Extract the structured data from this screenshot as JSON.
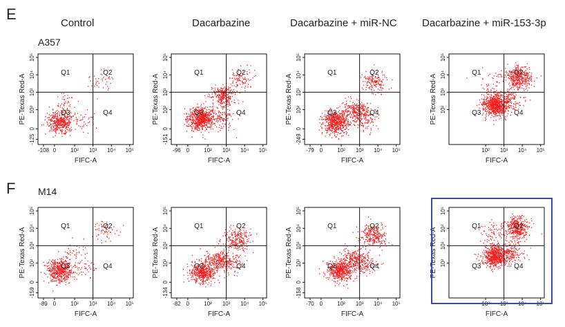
{
  "panel_e": {
    "letter": "E",
    "cell_line": "A357",
    "conditions": [
      "Control",
      "Dacarbazine",
      "Dacarbazine + miR-NC",
      "Dacarbazine + miR-153-3p"
    ]
  },
  "panel_f": {
    "letter": "F",
    "cell_line": "M14"
  },
  "colors": {
    "dots": "#ff1a1a",
    "highlight_box": "#3b46c2",
    "lines": "#111111"
  },
  "chart_data": [
    {
      "type": "scatter",
      "panel": "E",
      "condition": "Control",
      "xlabel": "FIFC-A",
      "ylabel": "PE-Texas Red-A",
      "x_ticks": [
        "-108",
        "0",
        "10²",
        "10³",
        "10⁴",
        "10⁵"
      ],
      "y_ticks": [
        "-125",
        "0",
        "10²",
        "10³",
        "10⁴",
        "10⁵"
      ],
      "quadrants": [
        "Q1",
        "Q2",
        "Q3",
        "Q4"
      ],
      "clusters": [
        {
          "x": 1.2,
          "y": 1.3,
          "n": 420
        },
        {
          "x": 3.5,
          "y": 3.7,
          "n": 40
        },
        {
          "x": 1.5,
          "y": 2.4,
          "n": 40
        },
        {
          "x": 2.5,
          "y": 1.4,
          "n": 40
        }
      ]
    },
    {
      "type": "scatter",
      "panel": "E",
      "condition": "Dacarbazine",
      "xlabel": "FIFC-A",
      "ylabel": "PE-Texas Red-A",
      "x_ticks": [
        "-96",
        "0",
        "10²",
        "10³",
        "10⁴",
        "10⁵"
      ],
      "y_ticks": [
        "-151",
        "0",
        "10²",
        "10³",
        "10⁴",
        "10⁵"
      ],
      "quadrants": [
        "Q1",
        "Q2",
        "Q3",
        "Q4"
      ],
      "clusters": [
        {
          "x": 1.6,
          "y": 1.5,
          "n": 650
        },
        {
          "x": 2.8,
          "y": 2.8,
          "n": 260
        },
        {
          "x": 3.8,
          "y": 3.8,
          "n": 90
        },
        {
          "x": 2.8,
          "y": 1.6,
          "n": 120
        }
      ]
    },
    {
      "type": "scatter",
      "panel": "E",
      "condition": "Dacarbazine + miR-NC",
      "xlabel": "FIFC-A",
      "ylabel": "PE-Texas Red-A",
      "x_ticks": [
        "-79",
        "0",
        "10²",
        "10³",
        "10⁴",
        "10⁵"
      ],
      "y_ticks": [
        "-249",
        "0",
        "10²",
        "10³",
        "10⁴",
        "10⁵"
      ],
      "quadrants": [
        "Q1",
        "Q2",
        "Q3",
        "Q4"
      ],
      "clusters": [
        {
          "x": 1.7,
          "y": 1.3,
          "n": 600
        },
        {
          "x": 2.8,
          "y": 2.0,
          "n": 230
        },
        {
          "x": 3.8,
          "y": 3.6,
          "n": 150
        },
        {
          "x": 3.3,
          "y": 1.5,
          "n": 120
        }
      ]
    },
    {
      "type": "scatter",
      "panel": "E",
      "condition": "Dacarbazine + miR-153-3p",
      "xlabel": "FIFC-A",
      "ylabel": "PE-Texas Red-A",
      "x_ticks": [
        "10²",
        "10³",
        "10⁴",
        "10⁵"
      ],
      "y_ticks": [
        "10²",
        "10³",
        "10⁴",
        "10⁵"
      ],
      "quadrants": [
        "Q1",
        "Q2",
        "Q3",
        "Q4"
      ],
      "clusters": [
        {
          "x": 2.5,
          "y": 2.3,
          "n": 720
        },
        {
          "x": 3.8,
          "y": 3.9,
          "n": 380
        },
        {
          "x": 3.3,
          "y": 2.5,
          "n": 120
        },
        {
          "x": 2.4,
          "y": 3.6,
          "n": 40
        }
      ]
    },
    {
      "type": "scatter",
      "panel": "F",
      "condition": "Control",
      "xlabel": "FIFC-A",
      "ylabel": "PE-Texas Red-A",
      "x_ticks": [
        "-89",
        "0",
        "10²",
        "10³",
        "10⁴",
        "10⁵"
      ],
      "y_ticks": [
        "-159",
        "0",
        "10²",
        "10³",
        "10⁴",
        "10⁵"
      ],
      "quadrants": [
        "Q1",
        "Q2",
        "Q3",
        "Q4"
      ],
      "clusters": [
        {
          "x": 1.2,
          "y": 1.6,
          "n": 500
        },
        {
          "x": 3.7,
          "y": 3.9,
          "n": 60
        },
        {
          "x": 2.0,
          "y": 2.6,
          "n": 40
        },
        {
          "x": 2.6,
          "y": 1.6,
          "n": 40
        }
      ]
    },
    {
      "type": "scatter",
      "panel": "F",
      "condition": "Dacarbazine",
      "xlabel": "FIFC-A",
      "ylabel": "PE-Texas Red-A",
      "x_ticks": [
        "-82",
        "0",
        "10²",
        "10³",
        "10⁴",
        "10⁵"
      ],
      "y_ticks": [
        "-134",
        "0",
        "10²",
        "10³",
        "10⁴",
        "10⁵"
      ],
      "quadrants": [
        "Q1",
        "Q2",
        "Q3",
        "Q4"
      ],
      "clusters": [
        {
          "x": 1.7,
          "y": 1.5,
          "n": 480
        },
        {
          "x": 2.6,
          "y": 2.1,
          "n": 240
        },
        {
          "x": 3.6,
          "y": 3.4,
          "n": 220
        },
        {
          "x": 3.3,
          "y": 2.0,
          "n": 100
        }
      ]
    },
    {
      "type": "scatter",
      "panel": "F",
      "condition": "Dacarbazine + miR-NC",
      "xlabel": "FIFC-A",
      "ylabel": "PE-Texas Red-A",
      "x_ticks": [
        "-70",
        "0",
        "10²",
        "10³",
        "10⁴",
        "10⁵"
      ],
      "y_ticks": [
        "-158",
        "0",
        "10²",
        "10³",
        "10⁴",
        "10⁵"
      ],
      "quadrants": [
        "Q1",
        "Q2",
        "Q3",
        "Q4"
      ],
      "clusters": [
        {
          "x": 1.9,
          "y": 1.6,
          "n": 480
        },
        {
          "x": 2.7,
          "y": 2.2,
          "n": 240
        },
        {
          "x": 3.7,
          "y": 3.6,
          "n": 260
        },
        {
          "x": 3.3,
          "y": 2.0,
          "n": 100
        }
      ]
    },
    {
      "type": "scatter",
      "panel": "F",
      "condition": "Dacarbazine + miR-153-3p",
      "xlabel": "FIFC-A",
      "ylabel": "PE-Texas Red-A",
      "x_ticks": [
        "10²",
        "10³",
        "10⁴",
        "10⁵"
      ],
      "y_ticks": [
        "10²",
        "10³",
        "10⁴",
        "10⁵"
      ],
      "quadrants": [
        "Q1",
        "Q2",
        "Q3",
        "Q4"
      ],
      "highlighted": true,
      "clusters": [
        {
          "x": 2.5,
          "y": 2.4,
          "n": 620
        },
        {
          "x": 3.7,
          "y": 4.0,
          "n": 380
        },
        {
          "x": 3.4,
          "y": 2.6,
          "n": 150
        },
        {
          "x": 2.3,
          "y": 3.8,
          "n": 60
        }
      ]
    }
  ]
}
